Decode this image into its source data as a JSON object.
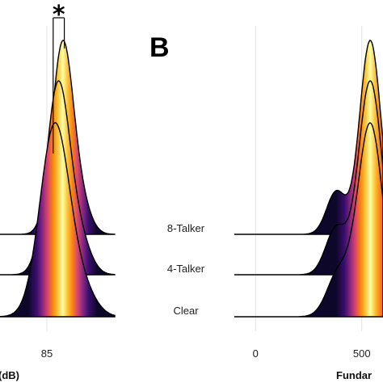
{
  "panel_label": "B",
  "significance_marker": "*",
  "chart_data": [
    {
      "type": "ridgeline",
      "xlabel_fragment": "(dB)",
      "x_ticks": [
        {
          "value": 85,
          "label": "85"
        }
      ],
      "x_domain": [
        80,
        91
      ],
      "grid": "vertical",
      "colormap": "inferno",
      "series": [
        {
          "name": "8-Talker",
          "order": 0,
          "peak": 86.4,
          "spread": 0.95,
          "shoulder": 88.1,
          "shoulder_weight": 0.12
        },
        {
          "name": "4-Talker",
          "order": 1,
          "peak": 86.0,
          "spread": 1.05,
          "shoulder": 88.0,
          "shoulder_weight": 0.15
        },
        {
          "name": "Clear",
          "order": 2,
          "peak": 85.7,
          "spread": 1.3,
          "shoulder": 88.2,
          "shoulder_weight": 0.12
        }
      ],
      "significance": {
        "between": [
          "8-Talker",
          "Clear"
        ],
        "label": "*"
      }
    },
    {
      "type": "ridgeline",
      "xlabel_fragment": "Fundar",
      "x_ticks": [
        {
          "value": 0,
          "label": "0"
        },
        {
          "value": 500,
          "label": "500"
        }
      ],
      "x_domain": [
        -100,
        600
      ],
      "grid": "vertical",
      "colormap": "inferno",
      "series": [
        {
          "name": "8-Talker",
          "order": 0,
          "peak": 540,
          "spread": 50,
          "shoulder": 380,
          "shoulder_weight": 0.22
        },
        {
          "name": "4-Talker",
          "order": 1,
          "peak": 540,
          "spread": 55,
          "shoulder": 380,
          "shoulder_weight": 0.24
        },
        {
          "name": "Clear",
          "order": 2,
          "peak": 540,
          "spread": 60,
          "shoulder": 390,
          "shoulder_weight": 0.22
        }
      ]
    }
  ]
}
